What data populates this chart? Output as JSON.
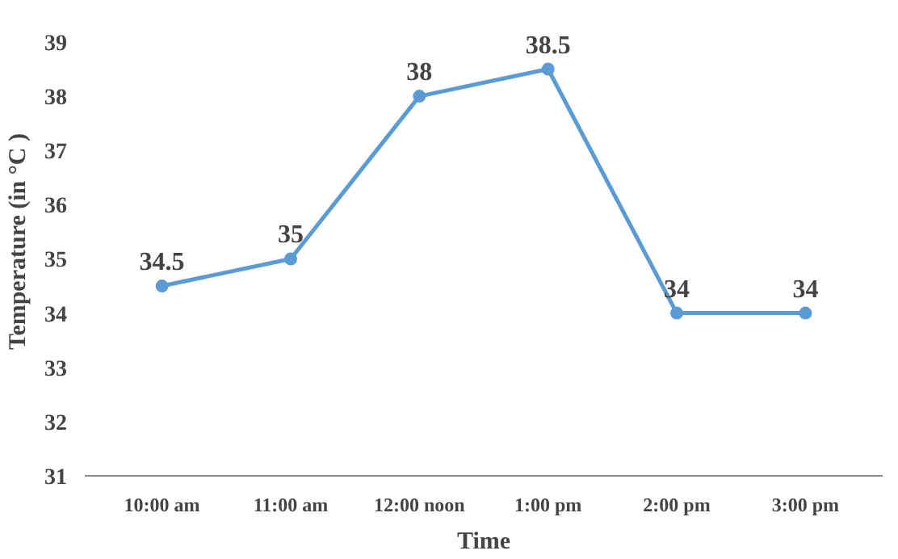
{
  "chart_data": {
    "type": "line",
    "xlabel": "Time",
    "ylabel": "Temperature (in °C )",
    "categories": [
      "10:00 am",
      "11:00 am",
      "12:00 noon",
      "1:00 pm",
      "2:00 pm",
      "3:00 pm"
    ],
    "values": [
      34.5,
      35,
      38,
      38.5,
      34,
      34
    ],
    "color": "#5b9bd5",
    "ylim": [
      31,
      39
    ],
    "yticks": [
      31,
      32,
      33,
      34,
      35,
      36,
      37,
      38,
      39
    ],
    "data_labels": true,
    "marker": "circle",
    "grid": false
  }
}
